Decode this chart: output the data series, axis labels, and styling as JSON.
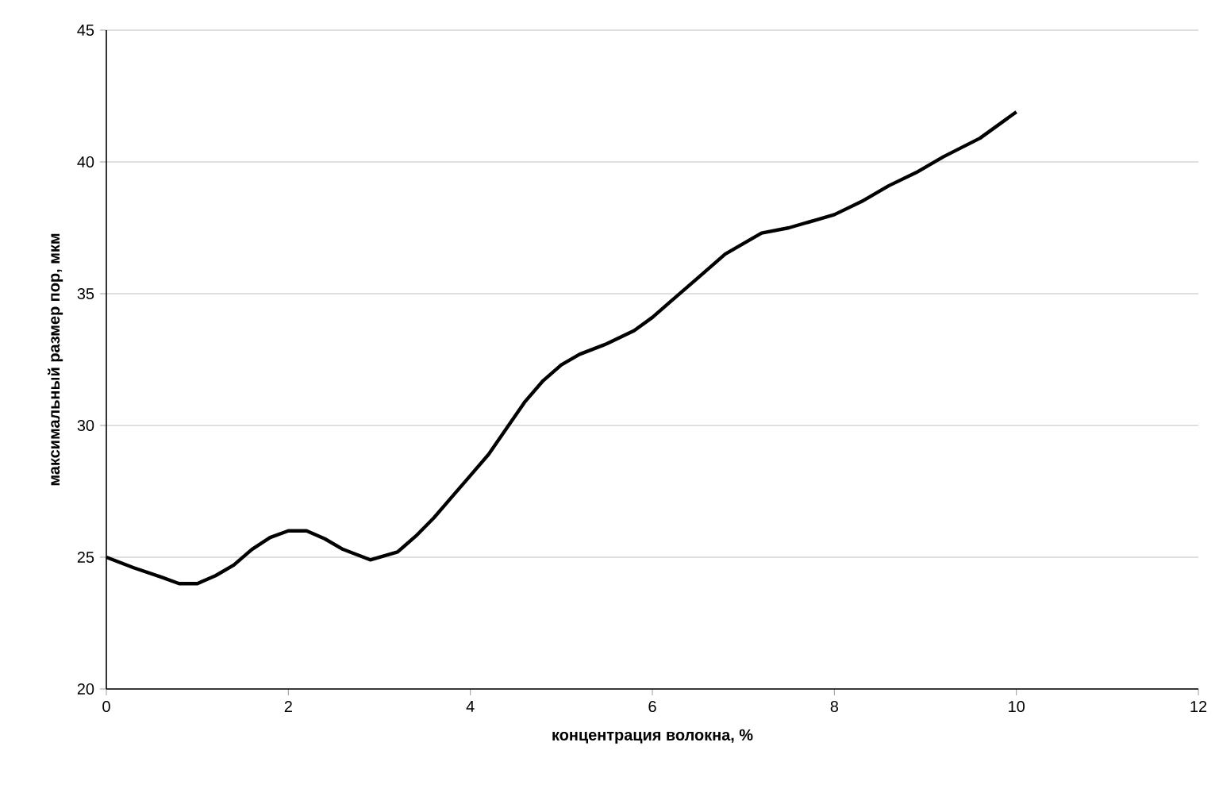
{
  "chart_data": {
    "type": "line",
    "xlabel": "концентрация волокна, %",
    "ylabel": "максимальный размер пор, мкм",
    "xlim": [
      0,
      12
    ],
    "xticks": [
      0,
      2,
      4,
      6,
      8,
      10,
      12
    ],
    "ylim": [
      20,
      45
    ],
    "yticks": [
      20,
      25,
      30,
      35,
      40,
      45
    ],
    "grid": "y",
    "series": [
      {
        "color": "#000000",
        "x": [
          0,
          0.3,
          0.6,
          0.8,
          1,
          1.2,
          1.4,
          1.6,
          1.8,
          2,
          2.2,
          2.4,
          2.6,
          2.9,
          3.2,
          3.4,
          3.6,
          3.8,
          4,
          4.2,
          4.4,
          4.6,
          4.8,
          5,
          5.2,
          5.5,
          5.8,
          6,
          6.2,
          6.5,
          6.8,
          7,
          7.2,
          7.5,
          7.8,
          8,
          8.3,
          8.6,
          8.9,
          9.2,
          9.6,
          10
        ],
        "values": [
          25,
          24.6,
          24.25,
          24,
          24,
          24.3,
          24.7,
          25.3,
          25.75,
          26,
          26,
          25.7,
          25.3,
          24.9,
          25.2,
          25.8,
          26.5,
          27.3,
          28.1,
          28.9,
          29.9,
          30.9,
          31.7,
          32.3,
          32.7,
          33.1,
          33.6,
          34.1,
          34.7,
          35.6,
          36.5,
          36.9,
          37.3,
          37.5,
          37.8,
          38,
          38.5,
          39.1,
          39.6,
          40.2,
          40.9,
          41.9
        ]
      }
    ]
  }
}
